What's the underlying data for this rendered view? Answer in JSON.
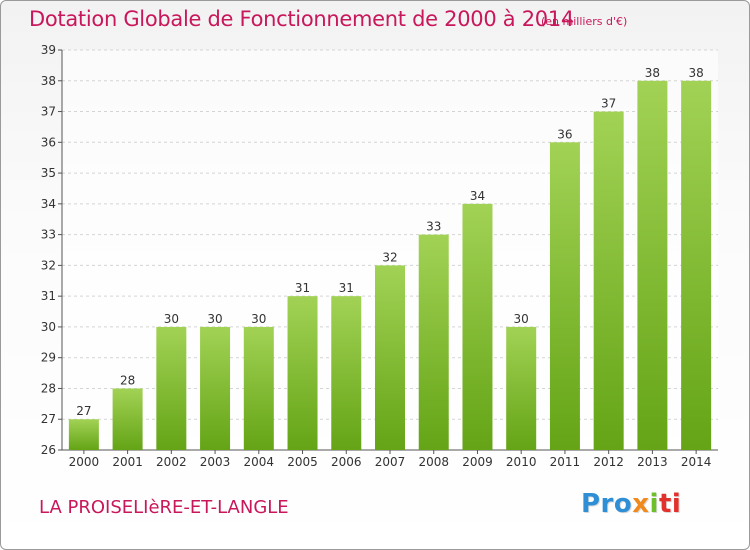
{
  "title": "Dotation Globale de Fonctionnement de 2000 à 2014",
  "unit_note": "(en milliers d'€)",
  "commune": "LA PROISELIèRE-ET-LANGLE",
  "logo": {
    "text": "Proxiti",
    "colors": [
      "#2f8fd6",
      "#f08a1c",
      "#6fbf2a",
      "#e2312d"
    ]
  },
  "colors": {
    "title": "#c8175a",
    "bar_top": "#a2d255",
    "bar_bottom": "#64a416",
    "grid": "#d4d4d4"
  },
  "chart_data": {
    "type": "bar",
    "title": "Dotation Globale de Fonctionnement de 2000 à 2014",
    "categories": [
      "2000",
      "2001",
      "2002",
      "2003",
      "2004",
      "2005",
      "2006",
      "2007",
      "2008",
      "2009",
      "2010",
      "2011",
      "2012",
      "2013",
      "2014"
    ],
    "values": [
      27,
      28,
      30,
      30,
      30,
      31,
      31,
      32,
      33,
      34,
      30,
      36,
      37,
      38,
      38
    ],
    "ylim": [
      26,
      39
    ],
    "yticks": [
      26,
      27,
      28,
      29,
      30,
      31,
      32,
      33,
      34,
      35,
      36,
      37,
      38,
      39
    ],
    "grid": true,
    "xlabel": "",
    "ylabel": ""
  }
}
